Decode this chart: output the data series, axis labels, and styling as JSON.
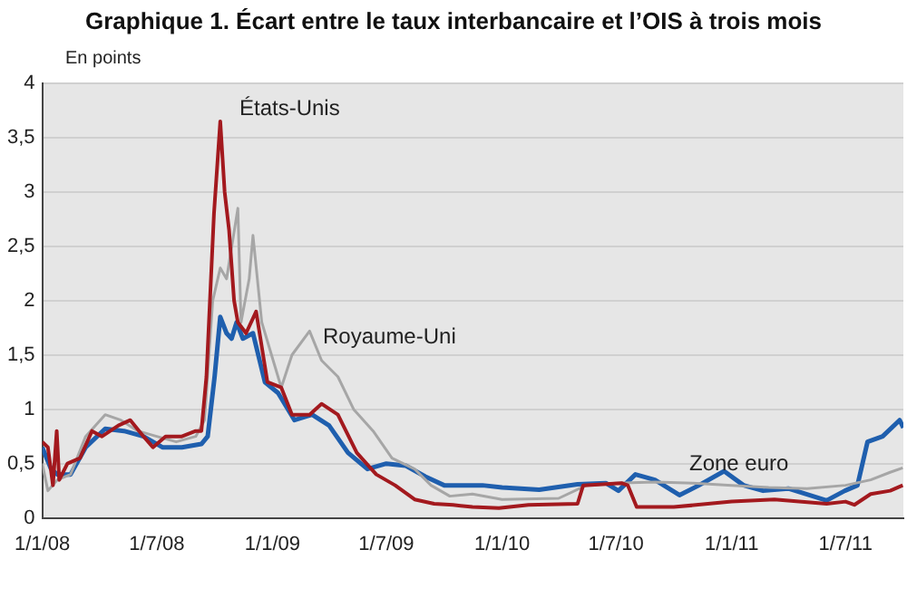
{
  "chart_data": {
    "type": "line",
    "title": "Graphique 1. Écart entre le taux interbancaire et l’OIS à trois mois",
    "ylabel": "En points",
    "series": [
      {
        "name": "États-Unis",
        "color": "#a3191e",
        "x": [
          "2008-01-01",
          "2008-01-10",
          "2008-01-18",
          "2008-01-24",
          "2008-01-28",
          "2008-02-10",
          "2008-03-01",
          "2008-03-20",
          "2008-04-05",
          "2008-05-01",
          "2008-05-20",
          "2008-06-10",
          "2008-06-25",
          "2008-07-15",
          "2008-08-10",
          "2008-09-01",
          "2008-09-10",
          "2008-09-18",
          "2008-09-30",
          "2008-10-10",
          "2008-10-17",
          "2008-10-24",
          "2008-11-01",
          "2008-11-07",
          "2008-11-20",
          "2008-12-06",
          "2008-12-24",
          "2009-01-15",
          "2009-02-01",
          "2009-03-01",
          "2009-03-20",
          "2009-04-15",
          "2009-05-15",
          "2009-06-15",
          "2009-07-15",
          "2009-08-15",
          "2009-09-15",
          "2009-10-15",
          "2009-11-15",
          "2009-12-27",
          "2010-02-12",
          "2010-05-01",
          "2010-05-10",
          "2010-07-10",
          "2010-07-20",
          "2010-08-03",
          "2010-10-01",
          "2011-01-01",
          "2011-03-10",
          "2011-06-01",
          "2011-07-01",
          "2011-07-15",
          "2011-08-10",
          "2011-09-10",
          "2011-09-30"
        ],
        "values": [
          0.7,
          0.65,
          0.3,
          0.8,
          0.35,
          0.5,
          0.55,
          0.8,
          0.75,
          0.85,
          0.9,
          0.75,
          0.65,
          0.75,
          0.75,
          0.8,
          0.8,
          1.3,
          2.8,
          3.65,
          3.0,
          2.65,
          2.0,
          1.8,
          1.7,
          1.9,
          1.25,
          1.2,
          0.95,
          0.95,
          1.05,
          0.95,
          0.6,
          0.4,
          0.3,
          0.17,
          0.13,
          0.12,
          0.1,
          0.09,
          0.12,
          0.13,
          0.3,
          0.32,
          0.3,
          0.1,
          0.1,
          0.15,
          0.17,
          0.13,
          0.15,
          0.12,
          0.22,
          0.25,
          0.3
        ]
      },
      {
        "name": "Royaume-Uni",
        "color": "#a6a6a6",
        "x": [
          "2008-01-01",
          "2008-01-10",
          "2008-01-25",
          "2008-02-15",
          "2008-03-10",
          "2008-04-10",
          "2008-05-05",
          "2008-06-01",
          "2008-07-01",
          "2008-08-01",
          "2008-09-01",
          "2008-09-15",
          "2008-09-28",
          "2008-10-10",
          "2008-10-20",
          "2008-11-07",
          "2008-11-12",
          "2008-11-25",
          "2008-12-01",
          "2008-12-15",
          "2009-01-15",
          "2009-02-01",
          "2009-03-01",
          "2009-03-20",
          "2009-04-15",
          "2009-05-10",
          "2009-06-10",
          "2009-07-10",
          "2009-08-15",
          "2009-09-10",
          "2009-10-10",
          "2009-11-15",
          "2010-01-01",
          "2010-04-01",
          "2010-05-15",
          "2010-07-01",
          "2010-09-01",
          "2010-11-01",
          "2011-01-01",
          "2011-03-01",
          "2011-05-01",
          "2011-07-01",
          "2011-08-10",
          "2011-09-10",
          "2011-09-30"
        ],
        "values": [
          0.5,
          0.25,
          0.35,
          0.4,
          0.75,
          0.95,
          0.9,
          0.8,
          0.75,
          0.7,
          0.75,
          0.9,
          2.0,
          2.3,
          2.2,
          2.85,
          1.8,
          2.2,
          2.6,
          1.8,
          1.2,
          1.5,
          1.72,
          1.45,
          1.3,
          1.0,
          0.8,
          0.55,
          0.45,
          0.3,
          0.2,
          0.22,
          0.17,
          0.18,
          0.3,
          0.32,
          0.33,
          0.32,
          0.3,
          0.28,
          0.27,
          0.3,
          0.35,
          0.42,
          0.46
        ]
      },
      {
        "name": "Zone euro",
        "color": "#1f5fae",
        "x": [
          "2008-01-01",
          "2008-01-15",
          "2008-01-25",
          "2008-02-15",
          "2008-03-10",
          "2008-04-10",
          "2008-05-10",
          "2008-06-10",
          "2008-07-10",
          "2008-08-10",
          "2008-09-10",
          "2008-09-20",
          "2008-10-01",
          "2008-10-10",
          "2008-10-20",
          "2008-10-28",
          "2008-11-05",
          "2008-11-15",
          "2008-12-01",
          "2008-12-20",
          "2009-01-10",
          "2009-02-05",
          "2009-03-05",
          "2009-04-01",
          "2009-05-01",
          "2009-06-01",
          "2009-07-01",
          "2009-08-01",
          "2009-09-01",
          "2009-10-01",
          "2009-11-01",
          "2009-12-01",
          "2010-01-01",
          "2010-03-01",
          "2010-05-01",
          "2010-06-15",
          "2010-07-05",
          "2010-08-01",
          "2010-09-01",
          "2010-10-10",
          "2010-11-10",
          "2010-12-20",
          "2011-01-20",
          "2011-02-20",
          "2011-04-01",
          "2011-06-01",
          "2011-06-30",
          "2011-07-20",
          "2011-08-05",
          "2011-08-29",
          "2011-09-25",
          "2011-10-01"
        ],
        "values": [
          0.65,
          0.45,
          0.4,
          0.4,
          0.65,
          0.82,
          0.8,
          0.75,
          0.65,
          0.65,
          0.68,
          0.75,
          1.3,
          1.85,
          1.7,
          1.65,
          1.8,
          1.65,
          1.7,
          1.25,
          1.15,
          0.9,
          0.95,
          0.85,
          0.6,
          0.45,
          0.5,
          0.48,
          0.38,
          0.3,
          0.3,
          0.3,
          0.28,
          0.26,
          0.31,
          0.32,
          0.25,
          0.4,
          0.35,
          0.21,
          0.3,
          0.43,
          0.3,
          0.25,
          0.27,
          0.16,
          0.25,
          0.3,
          0.7,
          0.75,
          0.9,
          0.83
        ]
      }
    ],
    "xlim": [
      "2008-01-01",
      "2011-10-01"
    ],
    "xticks": [
      {
        "value": "2008-01-01",
        "label": "1/1/08"
      },
      {
        "value": "2008-07-01",
        "label": "1/7/08"
      },
      {
        "value": "2009-01-01",
        "label": "1/1/09"
      },
      {
        "value": "2009-07-01",
        "label": "1/7/09"
      },
      {
        "value": "2010-01-01",
        "label": "1/1/10"
      },
      {
        "value": "2010-07-01",
        "label": "1/7/10"
      },
      {
        "value": "2011-01-01",
        "label": "1/1/11"
      },
      {
        "value": "2011-07-01",
        "label": "1/7/11"
      }
    ],
    "ylim": [
      0,
      4
    ],
    "yticks": [
      0,
      {
        "value": 0.5,
        "label": "0,5"
      },
      1,
      {
        "value": 1.5,
        "label": "1,5"
      },
      2,
      {
        "value": 2.5,
        "label": "2,5"
      },
      3,
      {
        "value": 3.5,
        "label": "3,5"
      },
      4
    ],
    "grid": "y",
    "legend": false,
    "marker": "none",
    "line_style": "solid"
  }
}
